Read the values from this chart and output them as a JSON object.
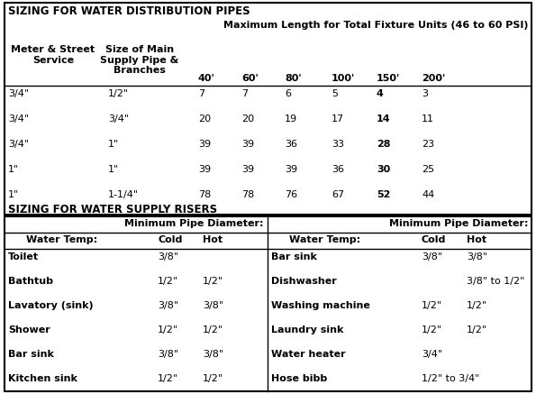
{
  "title1": "SIZING FOR WATER DISTRIBUTION PIPES",
  "subtitle": "Maximum Length for Total Fixture Units (46 to 60 PSI)",
  "dist_rows": [
    [
      "3/4\"",
      "1/2\"",
      "7",
      "7",
      "6",
      "5",
      "4",
      "3"
    ],
    [
      "3/4\"",
      "3/4\"",
      "20",
      "20",
      "19",
      "17",
      "14",
      "11"
    ],
    [
      "3/4\"",
      "1\"",
      "39",
      "39",
      "36",
      "33",
      "28",
      "23"
    ],
    [
      "1\"",
      "1\"",
      "39",
      "39",
      "39",
      "36",
      "30",
      "25"
    ],
    [
      "1\"",
      "1-1/4\"",
      "78",
      "78",
      "76",
      "67",
      "52",
      "44"
    ]
  ],
  "title2": "SIZING FOR WATER SUPPLY RISERS",
  "riser_left": [
    [
      "Toilet",
      "3/8\"",
      ""
    ],
    [
      "Bathtub",
      "1/2\"",
      "1/2\""
    ],
    [
      "Lavatory (sink)",
      "3/8\"",
      "3/8\""
    ],
    [
      "Shower",
      "1/2\"",
      "1/2\""
    ],
    [
      "Bar sink",
      "3/8\"",
      "3/8\""
    ],
    [
      "Kitchen sink",
      "1/2\"",
      "1/2\""
    ]
  ],
  "riser_right": [
    [
      "Bar sink",
      "3/8\"",
      "3/8\""
    ],
    [
      "Dishwasher",
      "",
      "3/8\" to 1/2\""
    ],
    [
      "Washing machine",
      "1/2\"",
      "1/2\""
    ],
    [
      "Laundry sink",
      "1/2\"",
      "1/2\""
    ],
    [
      "Water heater",
      "3/4\"",
      ""
    ],
    [
      "Hose bibb",
      "1/2\" to 3/4\"",
      ""
    ]
  ],
  "highlight_150": [
    "4",
    "14",
    "28",
    "30",
    "52"
  ]
}
